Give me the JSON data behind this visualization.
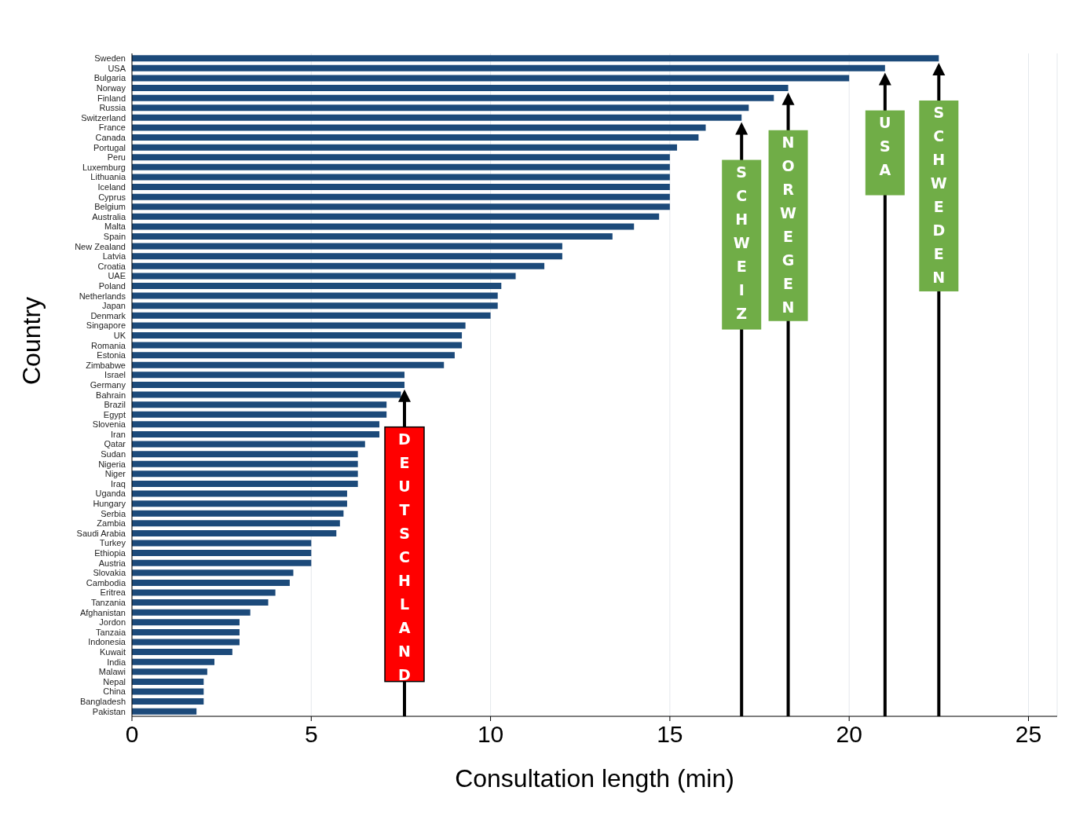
{
  "chart_data": {
    "type": "bar",
    "orientation": "horizontal",
    "xlabel": "Consultation length (min)",
    "ylabel": "Country",
    "categories": [
      "Sweden",
      "USA",
      "Bulgaria",
      "Norway",
      "Finland",
      "Russia",
      "Switzerland",
      "France",
      "Canada",
      "Portugal",
      "Peru",
      "Luxemburg",
      "Lithuania",
      "Iceland",
      "Cyprus",
      "Belgium",
      "Australia",
      "Malta",
      "Spain",
      "New Zealand",
      "Latvia",
      "Croatia",
      "UAE",
      "Poland",
      "Netherlands",
      "Japan",
      "Denmark",
      "Singapore",
      "UK",
      "Romania",
      "Estonia",
      "Zimbabwe",
      "Israel",
      "Germany",
      "Bahrain",
      "Brazil",
      "Egypt",
      "Slovenia",
      "Iran",
      "Qatar",
      "Sudan",
      "Nigeria",
      "Niger",
      "Iraq",
      "Uganda",
      "Hungary",
      "Serbia",
      "Zambia",
      "Saudi Arabia",
      "Turkey",
      "Ethiopia",
      "Austria",
      "Slovakia",
      "Cambodia",
      "Eritrea",
      "Tanzania",
      "Afghanistan",
      "Jordon",
      "Tanzaia",
      "Indonesia",
      "Kuwait",
      "India",
      "Malawi",
      "Nepal",
      "China",
      "Bangladesh",
      "Pakistan"
    ],
    "values": [
      22.5,
      21.0,
      20.0,
      18.3,
      17.9,
      17.2,
      17.0,
      16.0,
      15.8,
      15.2,
      15.0,
      15.0,
      15.0,
      15.0,
      15.0,
      15.0,
      14.7,
      14.0,
      13.4,
      12.0,
      12.0,
      11.5,
      10.7,
      10.3,
      10.2,
      10.2,
      10.0,
      9.3,
      9.2,
      9.2,
      9.0,
      8.7,
      7.6,
      7.6,
      7.5,
      7.1,
      7.1,
      6.9,
      6.9,
      6.5,
      6.3,
      6.3,
      6.3,
      6.3,
      6.0,
      6.0,
      5.9,
      5.8,
      5.7,
      5.0,
      5.0,
      5.0,
      4.5,
      4.4,
      4.0,
      3.8,
      3.3,
      3.0,
      3.0,
      3.0,
      2.8,
      2.3,
      2.1,
      2.0,
      2.0,
      2.0,
      1.8
    ],
    "color": "#1c4a7a",
    "xlim": [
      0,
      25.8
    ],
    "xticks": [
      0,
      5,
      10,
      15,
      20,
      25
    ],
    "grid": "x",
    "annotations": [
      {
        "text": "DEUTSCHLAND",
        "x": 7.6,
        "y": "Germany"
      },
      {
        "text": "SCHWEIZ",
        "x": 17.0,
        "y": "Switzerland"
      },
      {
        "text": "NORWEGEN",
        "x": 18.3,
        "y": "Norway"
      },
      {
        "text": "USA",
        "x": 21.0,
        "y": "USA"
      },
      {
        "text": "SCHWEDEN",
        "x": 22.5,
        "y": "Sweden"
      }
    ]
  }
}
